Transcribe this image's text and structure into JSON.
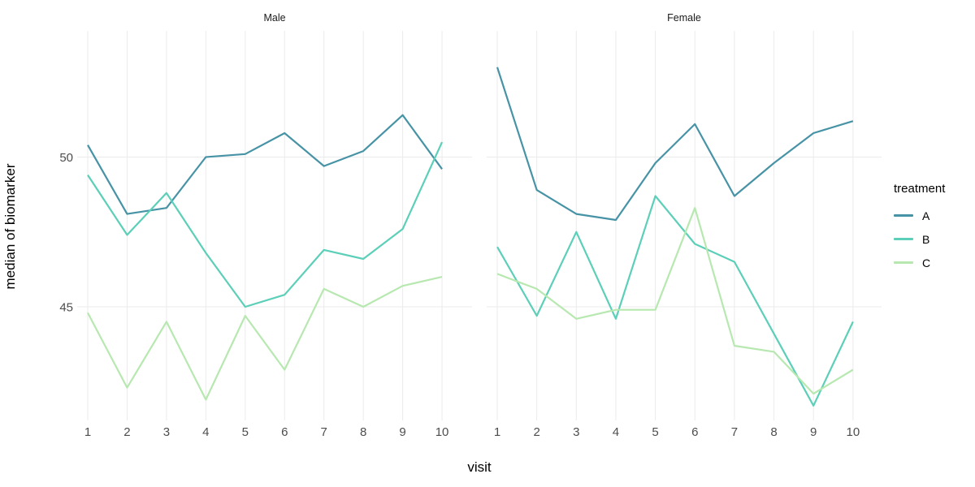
{
  "chart_data": {
    "type": "line",
    "title": "",
    "xlabel": "visit",
    "ylabel": "median of biomarker",
    "x": [
      1,
      2,
      3,
      4,
      5,
      6,
      7,
      8,
      9,
      10
    ],
    "yticks": [
      45,
      50
    ],
    "ylim": [
      41.2,
      54.2
    ],
    "grid": "major-only",
    "facets": [
      {
        "label": "Male",
        "series": [
          {
            "name": "A",
            "values": [
              50.4,
              48.1,
              48.3,
              50.0,
              50.1,
              50.8,
              49.7,
              50.2,
              51.4,
              49.6
            ]
          },
          {
            "name": "B",
            "values": [
              49.4,
              47.4,
              48.8,
              46.8,
              45.0,
              45.4,
              46.9,
              46.6,
              47.6,
              50.5
            ]
          },
          {
            "name": "C",
            "values": [
              44.8,
              42.3,
              44.5,
              41.9,
              44.7,
              42.9,
              45.6,
              45.0,
              45.7,
              46.0
            ]
          }
        ]
      },
      {
        "label": "Female",
        "series": [
          {
            "name": "A",
            "values": [
              53.0,
              48.9,
              48.1,
              47.9,
              49.8,
              51.1,
              48.7,
              49.8,
              50.8,
              51.2
            ]
          },
          {
            "name": "B",
            "values": [
              47.0,
              44.7,
              47.5,
              44.6,
              48.7,
              47.1,
              46.5,
              44.1,
              41.7,
              44.5
            ]
          },
          {
            "name": "C",
            "values": [
              46.1,
              45.6,
              44.6,
              44.9,
              44.9,
              48.3,
              43.7,
              43.5,
              42.1,
              42.9
            ]
          }
        ]
      }
    ],
    "legend": {
      "title": "treatment",
      "position": "right",
      "entries": [
        {
          "label": "A",
          "color": "#4793a6"
        },
        {
          "label": "B",
          "color": "#5ccfb8"
        },
        {
          "label": "C",
          "color": "#b7e8b0"
        }
      ]
    },
    "colors": {
      "gridline": "#ebebeb",
      "axis_text": "#4d4d4d",
      "strip_text": "#1a1a1a",
      "axis_title": "#000000",
      "background": "#ffffff"
    }
  }
}
